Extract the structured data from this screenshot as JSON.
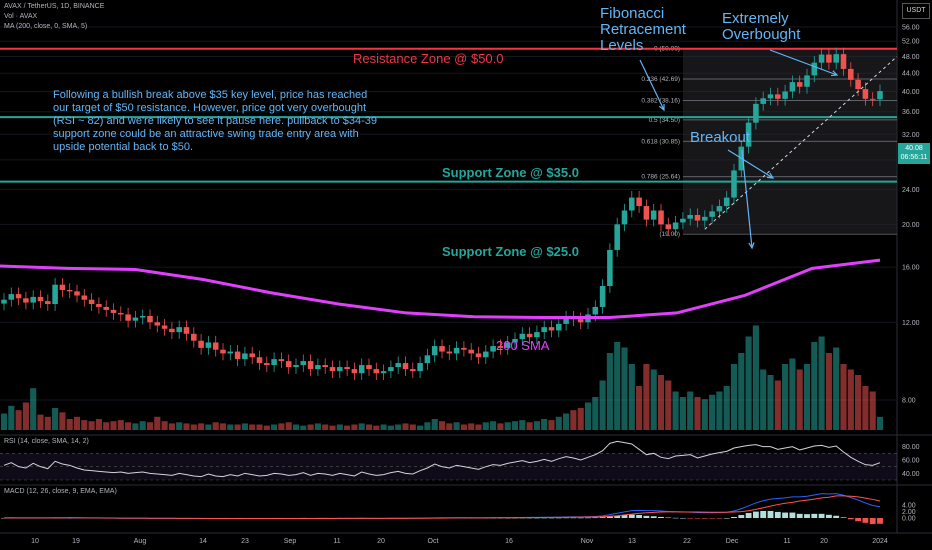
{
  "header": {
    "symbol_line": "AVAX / TetherUS, 1D, BINANCE",
    "vol_line": "Vol · AVAX",
    "ma_line": "MA (200, close, 0, SMA, 5)"
  },
  "currency_button": "USDT",
  "price_tag": {
    "price": "40.08",
    "countdown": "06:56:11"
  },
  "annotations": {
    "resistance": "Resistance Zone @ $50.0",
    "support35": "Support Zone @ $35.0",
    "support25": "Support Zone @ $25.0",
    "fib": "Fibonacci Retracement Levels",
    "overbought": "Extremely Overbought",
    "breakout": "Breakout",
    "sma": "200 SMA",
    "note": "Following a bullish break above $35 key level, price has reached our target of $50 resistance. However, price got very overbought (RSI ~ 82) and we're likely to see it pause here. pullback to $34-39 support zone could be an attractive swing trade entry area with upside potential back to $50."
  },
  "indicators": {
    "rsi_label": "RSI (14, close, SMA, 14, 2)",
    "macd_label": "MACD (12, 26, close, 9, EMA, EMA)"
  },
  "colors": {
    "up": "#26a69a",
    "down": "#ef5350",
    "sma": "#e040fb",
    "resistance": "#f23645",
    "support": "#26a69a",
    "annotation": "#64b5f6",
    "macd": "#2962ff",
    "signal": "#ff5252"
  },
  "chart_data": {
    "type": "candlestick",
    "price_axis": {
      "scale": "log",
      "ticks": [
        "56.00",
        "52.00",
        "48.00",
        "44.00",
        "40.00",
        "36.00",
        "32.00",
        "28.00",
        "24.00",
        "20.00",
        "16.00",
        "12.00",
        "8.00"
      ]
    },
    "x_axis": {
      "ticks": [
        "10",
        "19",
        "Aug",
        "14",
        "23",
        "Sep",
        "11",
        "20",
        "Oct",
        "16",
        "Nov",
        "13",
        "22",
        "Dec",
        "11",
        "20",
        "2024"
      ]
    },
    "rsi_axis": {
      "ticks": [
        "80.00",
        "60.00",
        "40.00"
      ]
    },
    "macd_axis": {
      "ticks": [
        "4.00",
        "2.00",
        "0.00"
      ]
    },
    "levels": {
      "resistance": 50.0,
      "support_high": 35.0,
      "support_low": 25.0
    },
    "fibonacci": [
      {
        "ratio": "0",
        "label": "0 (50.00)",
        "price": 50.0
      },
      {
        "ratio": "0.236",
        "label": "0.236 (42.69)",
        "price": 42.69
      },
      {
        "ratio": "0.382",
        "label": "0.382 (38.16)",
        "price": 38.16
      },
      {
        "ratio": "0.5",
        "label": "0.5 (34.50)",
        "price": 34.5
      },
      {
        "ratio": "0.618",
        "label": "0.618 (30.85)",
        "price": 30.85
      },
      {
        "ratio": "0.786",
        "label": "0.786 (25.64)",
        "price": 25.64
      },
      {
        "ratio": "1",
        "label": "(19.00)",
        "price": 19.0
      }
    ],
    "close_prices": [
      13.5,
      13.9,
      13.6,
      13.3,
      13.7,
      13.4,
      13.2,
      14.6,
      14.2,
      14.1,
      13.8,
      13.5,
      13.2,
      13.0,
      12.8,
      12.6,
      12.5,
      12.1,
      12.3,
      12.4,
      12.0,
      11.8,
      11.6,
      11.4,
      11.7,
      11.3,
      10.9,
      10.5,
      10.8,
      10.4,
      10.2,
      10.3,
      9.9,
      10.2,
      10.0,
      9.7,
      9.6,
      9.9,
      9.8,
      9.5,
      9.6,
      9.8,
      9.4,
      9.6,
      9.5,
      9.3,
      9.5,
      9.4,
      9.2,
      9.6,
      9.4,
      9.2,
      9.3,
      9.5,
      9.7,
      9.4,
      9.3,
      9.7,
      10.1,
      10.6,
      10.3,
      10.2,
      10.5,
      10.4,
      10.2,
      10.0,
      10.3,
      10.6,
      10.5,
      10.8,
      11.0,
      11.3,
      11.1,
      11.4,
      11.7,
      11.5,
      11.9,
      12.3,
      12.2,
      12.0,
      12.5,
      13.0,
      14.5,
      17.5,
      20.0,
      21.5,
      23.0,
      22.0,
      20.5,
      21.5,
      20.0,
      19.5,
      20.2,
      20.6,
      21.0,
      20.4,
      20.8,
      21.4,
      22.0,
      23.0,
      26.5,
      30.0,
      34.0,
      37.5,
      38.6,
      39.4,
      38.5,
      40.0,
      42.0,
      41.0,
      43.5,
      46.5,
      48.5,
      46.5,
      48.6,
      45.0,
      42.5,
      40.5,
      38.5,
      38.4,
      40.08
    ],
    "sma200": [
      16.1,
      15.9,
      15.8,
      15.0,
      14.0,
      13.2,
      12.6,
      12.35,
      12.3,
      12.3,
      12.6,
      13.8,
      15.9,
      16.6
    ],
    "volume_relative": [
      0.15,
      0.22,
      0.18,
      0.25,
      0.38,
      0.14,
      0.12,
      0.2,
      0.16,
      0.1,
      0.12,
      0.09,
      0.08,
      0.1,
      0.07,
      0.08,
      0.09,
      0.07,
      0.06,
      0.08,
      0.07,
      0.12,
      0.08,
      0.06,
      0.07,
      0.06,
      0.05,
      0.06,
      0.05,
      0.07,
      0.06,
      0.05,
      0.05,
      0.06,
      0.05,
      0.05,
      0.04,
      0.05,
      0.06,
      0.07,
      0.05,
      0.04,
      0.05,
      0.06,
      0.05,
      0.04,
      0.05,
      0.04,
      0.05,
      0.06,
      0.05,
      0.04,
      0.05,
      0.04,
      0.05,
      0.06,
      0.05,
      0.04,
      0.07,
      0.1,
      0.08,
      0.06,
      0.07,
      0.05,
      0.06,
      0.05,
      0.07,
      0.08,
      0.06,
      0.07,
      0.08,
      0.09,
      0.07,
      0.08,
      0.1,
      0.09,
      0.12,
      0.15,
      0.18,
      0.2,
      0.25,
      0.3,
      0.45,
      0.7,
      0.8,
      0.75,
      0.6,
      0.4,
      0.6,
      0.55,
      0.5,
      0.45,
      0.35,
      0.3,
      0.35,
      0.3,
      0.28,
      0.32,
      0.35,
      0.4,
      0.6,
      0.7,
      0.85,
      0.95,
      0.55,
      0.5,
      0.45,
      0.6,
      0.65,
      0.55,
      0.6,
      0.8,
      0.85,
      0.7,
      0.75,
      0.6,
      0.55,
      0.5,
      0.4,
      0.35,
      0.12
    ],
    "rsi": [
      52,
      56,
      50,
      48,
      55,
      50,
      47,
      58,
      54,
      52,
      48,
      45,
      44,
      43,
      42,
      41,
      42,
      40,
      41,
      42,
      40,
      39,
      38,
      37,
      40,
      38,
      36,
      35,
      39,
      36,
      35,
      38,
      36,
      40,
      38,
      36,
      37,
      40,
      39,
      37,
      38,
      41,
      37,
      40,
      39,
      37,
      40,
      38,
      36,
      42,
      39,
      37,
      38,
      41,
      43,
      40,
      39,
      44,
      48,
      54,
      50,
      48,
      52,
      50,
      48,
      46,
      50,
      53,
      52,
      55,
      57,
      59,
      56,
      58,
      61,
      58,
      62,
      65,
      63,
      60,
      64,
      68,
      74,
      85,
      88,
      86,
      84,
      76,
      68,
      70,
      64,
      62,
      66,
      67,
      68,
      63,
      66,
      69,
      71,
      73,
      78,
      80,
      82,
      83,
      80,
      80,
      76,
      78,
      80,
      75,
      78,
      81,
      82,
      79,
      81,
      72,
      64,
      58,
      53,
      52,
      56
    ],
    "macd": [
      0.05,
      0.06,
      0.05,
      0.04,
      0.05,
      0.04,
      0.03,
      0.08,
      0.08,
      0.07,
      0.05,
      0.03,
      0.01,
      -0.01,
      -0.03,
      -0.05,
      -0.06,
      -0.08,
      -0.09,
      -0.09,
      -0.1,
      -0.11,
      -0.12,
      -0.13,
      -0.12,
      -0.13,
      -0.15,
      -0.17,
      -0.16,
      -0.17,
      -0.18,
      -0.17,
      -0.18,
      -0.16,
      -0.16,
      -0.17,
      -0.17,
      -0.15,
      -0.15,
      -0.16,
      -0.15,
      -0.13,
      -0.14,
      -0.13,
      -0.12,
      -0.13,
      -0.11,
      -0.11,
      -0.12,
      -0.09,
      -0.1,
      -0.11,
      -0.11,
      -0.09,
      -0.07,
      -0.08,
      -0.08,
      -0.05,
      -0.01,
      0.05,
      0.06,
      0.06,
      0.08,
      0.08,
      0.07,
      0.05,
      0.06,
      0.08,
      0.09,
      0.11,
      0.14,
      0.17,
      0.18,
      0.2,
      0.23,
      0.24,
      0.27,
      0.32,
      0.35,
      0.36,
      0.41,
      0.48,
      0.65,
      1.05,
      1.5,
      1.9,
      2.3,
      2.4,
      2.3,
      2.3,
      2.2,
      2.05,
      1.95,
      1.9,
      1.85,
      1.7,
      1.65,
      1.65,
      1.7,
      1.8,
      2.2,
      2.9,
      3.8,
      4.7,
      5.4,
      5.9,
      6.1,
      6.3,
      6.6,
      6.6,
      6.8,
      7.2,
      7.6,
      7.5,
      7.6,
      7.1,
      6.4,
      5.6,
      4.7,
      3.9,
      3.5
    ],
    "macd_signal": [
      0.03,
      0.04,
      0.04,
      0.04,
      0.04,
      0.04,
      0.04,
      0.05,
      0.05,
      0.06,
      0.06,
      0.05,
      0.04,
      0.03,
      0.01,
      -0.0,
      -0.02,
      -0.03,
      -0.04,
      -0.05,
      -0.06,
      -0.07,
      -0.08,
      -0.09,
      -0.1,
      -0.11,
      -0.12,
      -0.13,
      -0.14,
      -0.14,
      -0.15,
      -0.16,
      -0.16,
      -0.16,
      -0.16,
      -0.17,
      -0.17,
      -0.16,
      -0.16,
      -0.16,
      -0.16,
      -0.15,
      -0.15,
      -0.15,
      -0.14,
      -0.14,
      -0.13,
      -0.13,
      -0.13,
      -0.12,
      -0.12,
      -0.12,
      -0.11,
      -0.11,
      -0.1,
      -0.1,
      -0.09,
      -0.08,
      -0.07,
      -0.04,
      -0.02,
      0.0,
      0.02,
      0.03,
      0.04,
      0.05,
      0.05,
      0.06,
      0.07,
      0.08,
      0.09,
      0.11,
      0.12,
      0.14,
      0.16,
      0.18,
      0.2,
      0.22,
      0.25,
      0.28,
      0.31,
      0.34,
      0.4,
      0.53,
      0.72,
      0.96,
      1.23,
      1.46,
      1.63,
      1.76,
      1.86,
      1.9,
      1.9,
      1.89,
      1.89,
      1.86,
      1.83,
      1.8,
      1.78,
      1.8,
      1.88,
      1.98,
      2.25,
      2.7,
      3.2,
      3.7,
      4.2,
      4.6,
      4.9,
      5.3,
      5.6,
      5.9,
      6.3,
      6.5,
      6.9,
      6.9,
      6.8,
      6.6,
      6.2,
      5.8,
      5.3
    ]
  }
}
